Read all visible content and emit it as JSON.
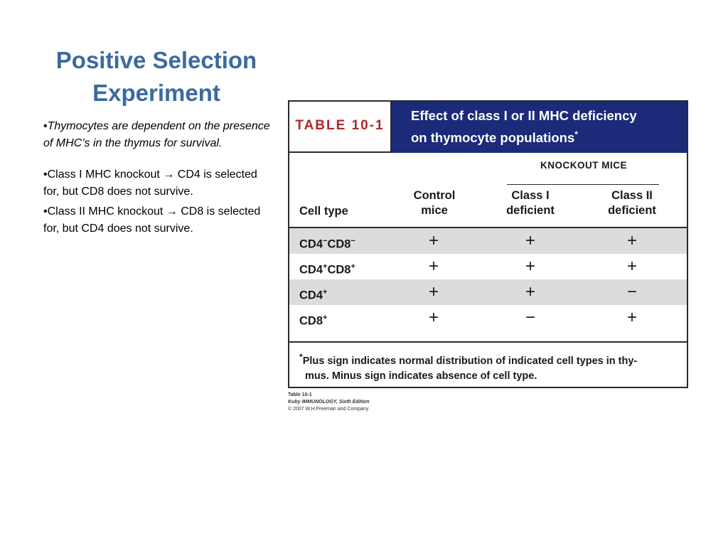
{
  "slide": {
    "title_line1": "Positive Selection",
    "title_line2": "Experiment"
  },
  "bullets": [
    {
      "marker": "•",
      "text": "Thymocytes are dependent on the presence of MHC’s in the thymus for survival."
    },
    {
      "marker": "•",
      "text_before": "Class I MHC knockout ",
      "arrow": "→",
      "text_after": " CD4 is selected for, but CD8 does not survive."
    },
    {
      "marker": "•",
      "text_before": "Class II MHC knockout ",
      "arrow": "→",
      "text_after": " CD8 is selected for, but CD4 does not survive."
    }
  ],
  "table": {
    "label": "TABLE 10-1",
    "title_line1": "Effect of class I or II MHC deficiency",
    "title_line2": "on thymocyte populations",
    "title_mark": "*",
    "col_cell_type": "Cell type",
    "col_control_1": "Control",
    "col_control_2": "mice",
    "knockout_label": "KNOCKOUT MICE",
    "col_class1_1": "Class I",
    "col_class1_2": "deficient",
    "col_class2_1": "Class II",
    "col_class2_2": "deficient",
    "rows": [
      {
        "cd4": "CD4",
        "cd4_sup": "−",
        "cd8": "CD8",
        "cd8_sup": "−",
        "control": "+",
        "class1": "+",
        "class2": "+"
      },
      {
        "cd4": "CD4",
        "cd4_sup": "+",
        "cd8": "CD8",
        "cd8_sup": "+",
        "control": "+",
        "class1": "+",
        "class2": "+"
      },
      {
        "cd4": "CD4",
        "cd4_sup": "+",
        "control": "+",
        "class1": "+",
        "class2": "−"
      },
      {
        "cd8": "CD8",
        "cd8_sup": "+",
        "control": "+",
        "class1": "−",
        "class2": "+"
      }
    ],
    "footnote_mark": "*",
    "footnote_line1": "Plus sign indicates normal distribution of indicated cell types in thy-",
    "footnote_line2": "mus. Minus sign indicates absence of cell type."
  },
  "caption": {
    "line1": "Table 10-1",
    "line2": "Kuby IMMUNOLOGY, Sixth Edition",
    "line3": "© 2007 W.H.Freeman and Company"
  },
  "colors": {
    "title": "#3b6aa0",
    "table_label": "#b0262a",
    "table_title_bg": "#1b2b7a",
    "row_shade": "#dcdcdc"
  }
}
